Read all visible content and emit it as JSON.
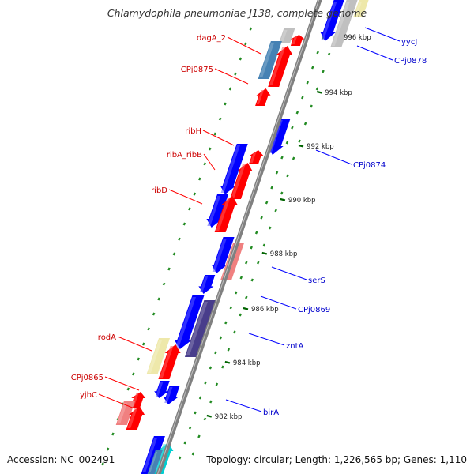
{
  "title": "Chlamydophila pneumoniae J138, complete genome",
  "accession": "Accession: NC_002491",
  "topology": "Topology: circular; Length: 1,226,565 bp; Genes: 1,110",
  "colors": {
    "backbone": "#808080",
    "forward_gene": "#ff0000",
    "reverse_gene": "#0000ff",
    "pink_gene": "#f08080",
    "light_yellow_gene": "#eee8aa",
    "steel_blue_gene": "#4682b4",
    "slate_blue_gene": "#483d8b",
    "gray_gene": "#c0c0c0",
    "cyan_gene": "#00ced1",
    "tick_major": "#006400",
    "tick_minor": "#228b22",
    "label_forward": "#cc0000",
    "label_reverse": "#0000cc",
    "leader_forward": "#ff0000",
    "leader_reverse": "#0000ff"
  },
  "ruler": [
    {
      "kbp": 996,
      "label": "996 kbp"
    },
    {
      "kbp": 994,
      "label": "994 kbp"
    },
    {
      "kbp": 992,
      "label": "992 kbp"
    },
    {
      "kbp": 990,
      "label": "990 kbp"
    },
    {
      "kbp": 988,
      "label": "988 kbp"
    },
    {
      "kbp": 986,
      "label": "986 kbp"
    },
    {
      "kbp": 984,
      "label": "984 kbp"
    },
    {
      "kbp": 982,
      "label": "982 kbp"
    }
  ],
  "gene_labels": {
    "forward": [
      "dagA_2",
      "CPj0875",
      "ribH",
      "ribA_ribB",
      "ribD",
      "rodA",
      "CPj0865",
      "yjbC"
    ],
    "reverse": [
      "yycJ",
      "CPj0878",
      "CPj0874",
      "serS",
      "CPj0869",
      "zntA",
      "birA"
    ]
  }
}
